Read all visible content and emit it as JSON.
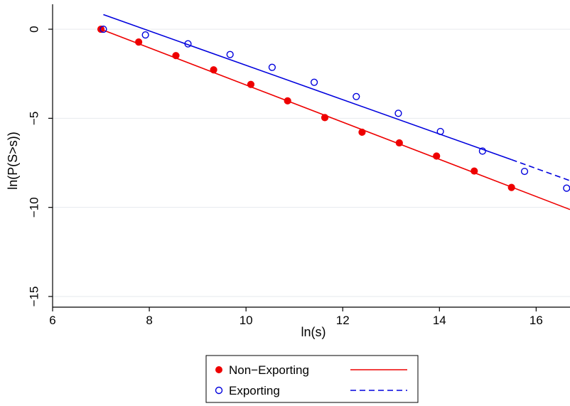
{
  "chart_data": {
    "type": "scatter",
    "xlabel": "ln(s)",
    "ylabel": "ln(P(S>s))",
    "xlim": [
      6,
      16.7
    ],
    "ylim": [
      -15.6,
      1.4
    ],
    "xticks": [
      6,
      8,
      10,
      12,
      14,
      16
    ],
    "yticks": [
      0,
      -5,
      -10,
      -15
    ],
    "grid": true,
    "legend_position": "bottom-center",
    "series": [
      {
        "name": "Non−Exporting",
        "color": "#ee0000",
        "marker": "filled-circle",
        "line_style": "solid",
        "points": [
          [
            7.0,
            0.0
          ],
          [
            7.78,
            -0.72
          ],
          [
            8.55,
            -1.48
          ],
          [
            9.33,
            -2.28
          ],
          [
            10.1,
            -3.1
          ],
          [
            10.86,
            -4.02
          ],
          [
            11.63,
            -4.96
          ],
          [
            12.4,
            -5.78
          ],
          [
            13.17,
            -6.38
          ],
          [
            13.94,
            -7.12
          ],
          [
            14.72,
            -7.96
          ],
          [
            15.49,
            -8.88
          ]
        ],
        "fit_line": [
          [
            7.0,
            0.0
          ],
          [
            16.7,
            -10.12
          ]
        ]
      },
      {
        "name": "Exporting",
        "color": "#0000dd",
        "marker": "hollow-circle",
        "line_style": "dashed",
        "points": [
          [
            7.05,
            0.0
          ],
          [
            7.92,
            -0.32
          ],
          [
            8.8,
            -0.82
          ],
          [
            9.67,
            -1.42
          ],
          [
            10.54,
            -2.14
          ],
          [
            11.41,
            -2.98
          ],
          [
            12.28,
            -3.78
          ],
          [
            13.15,
            -4.72
          ],
          [
            14.02,
            -5.74
          ],
          [
            14.89,
            -6.84
          ],
          [
            15.76,
            -7.98
          ],
          [
            16.63,
            -8.92
          ]
        ],
        "fit_line": [
          [
            7.05,
            0.82
          ],
          [
            15.49,
            -7.32
          ]
        ],
        "fit_line_extension": [
          [
            15.49,
            -7.32
          ],
          [
            16.7,
            -8.5
          ]
        ]
      }
    ]
  }
}
